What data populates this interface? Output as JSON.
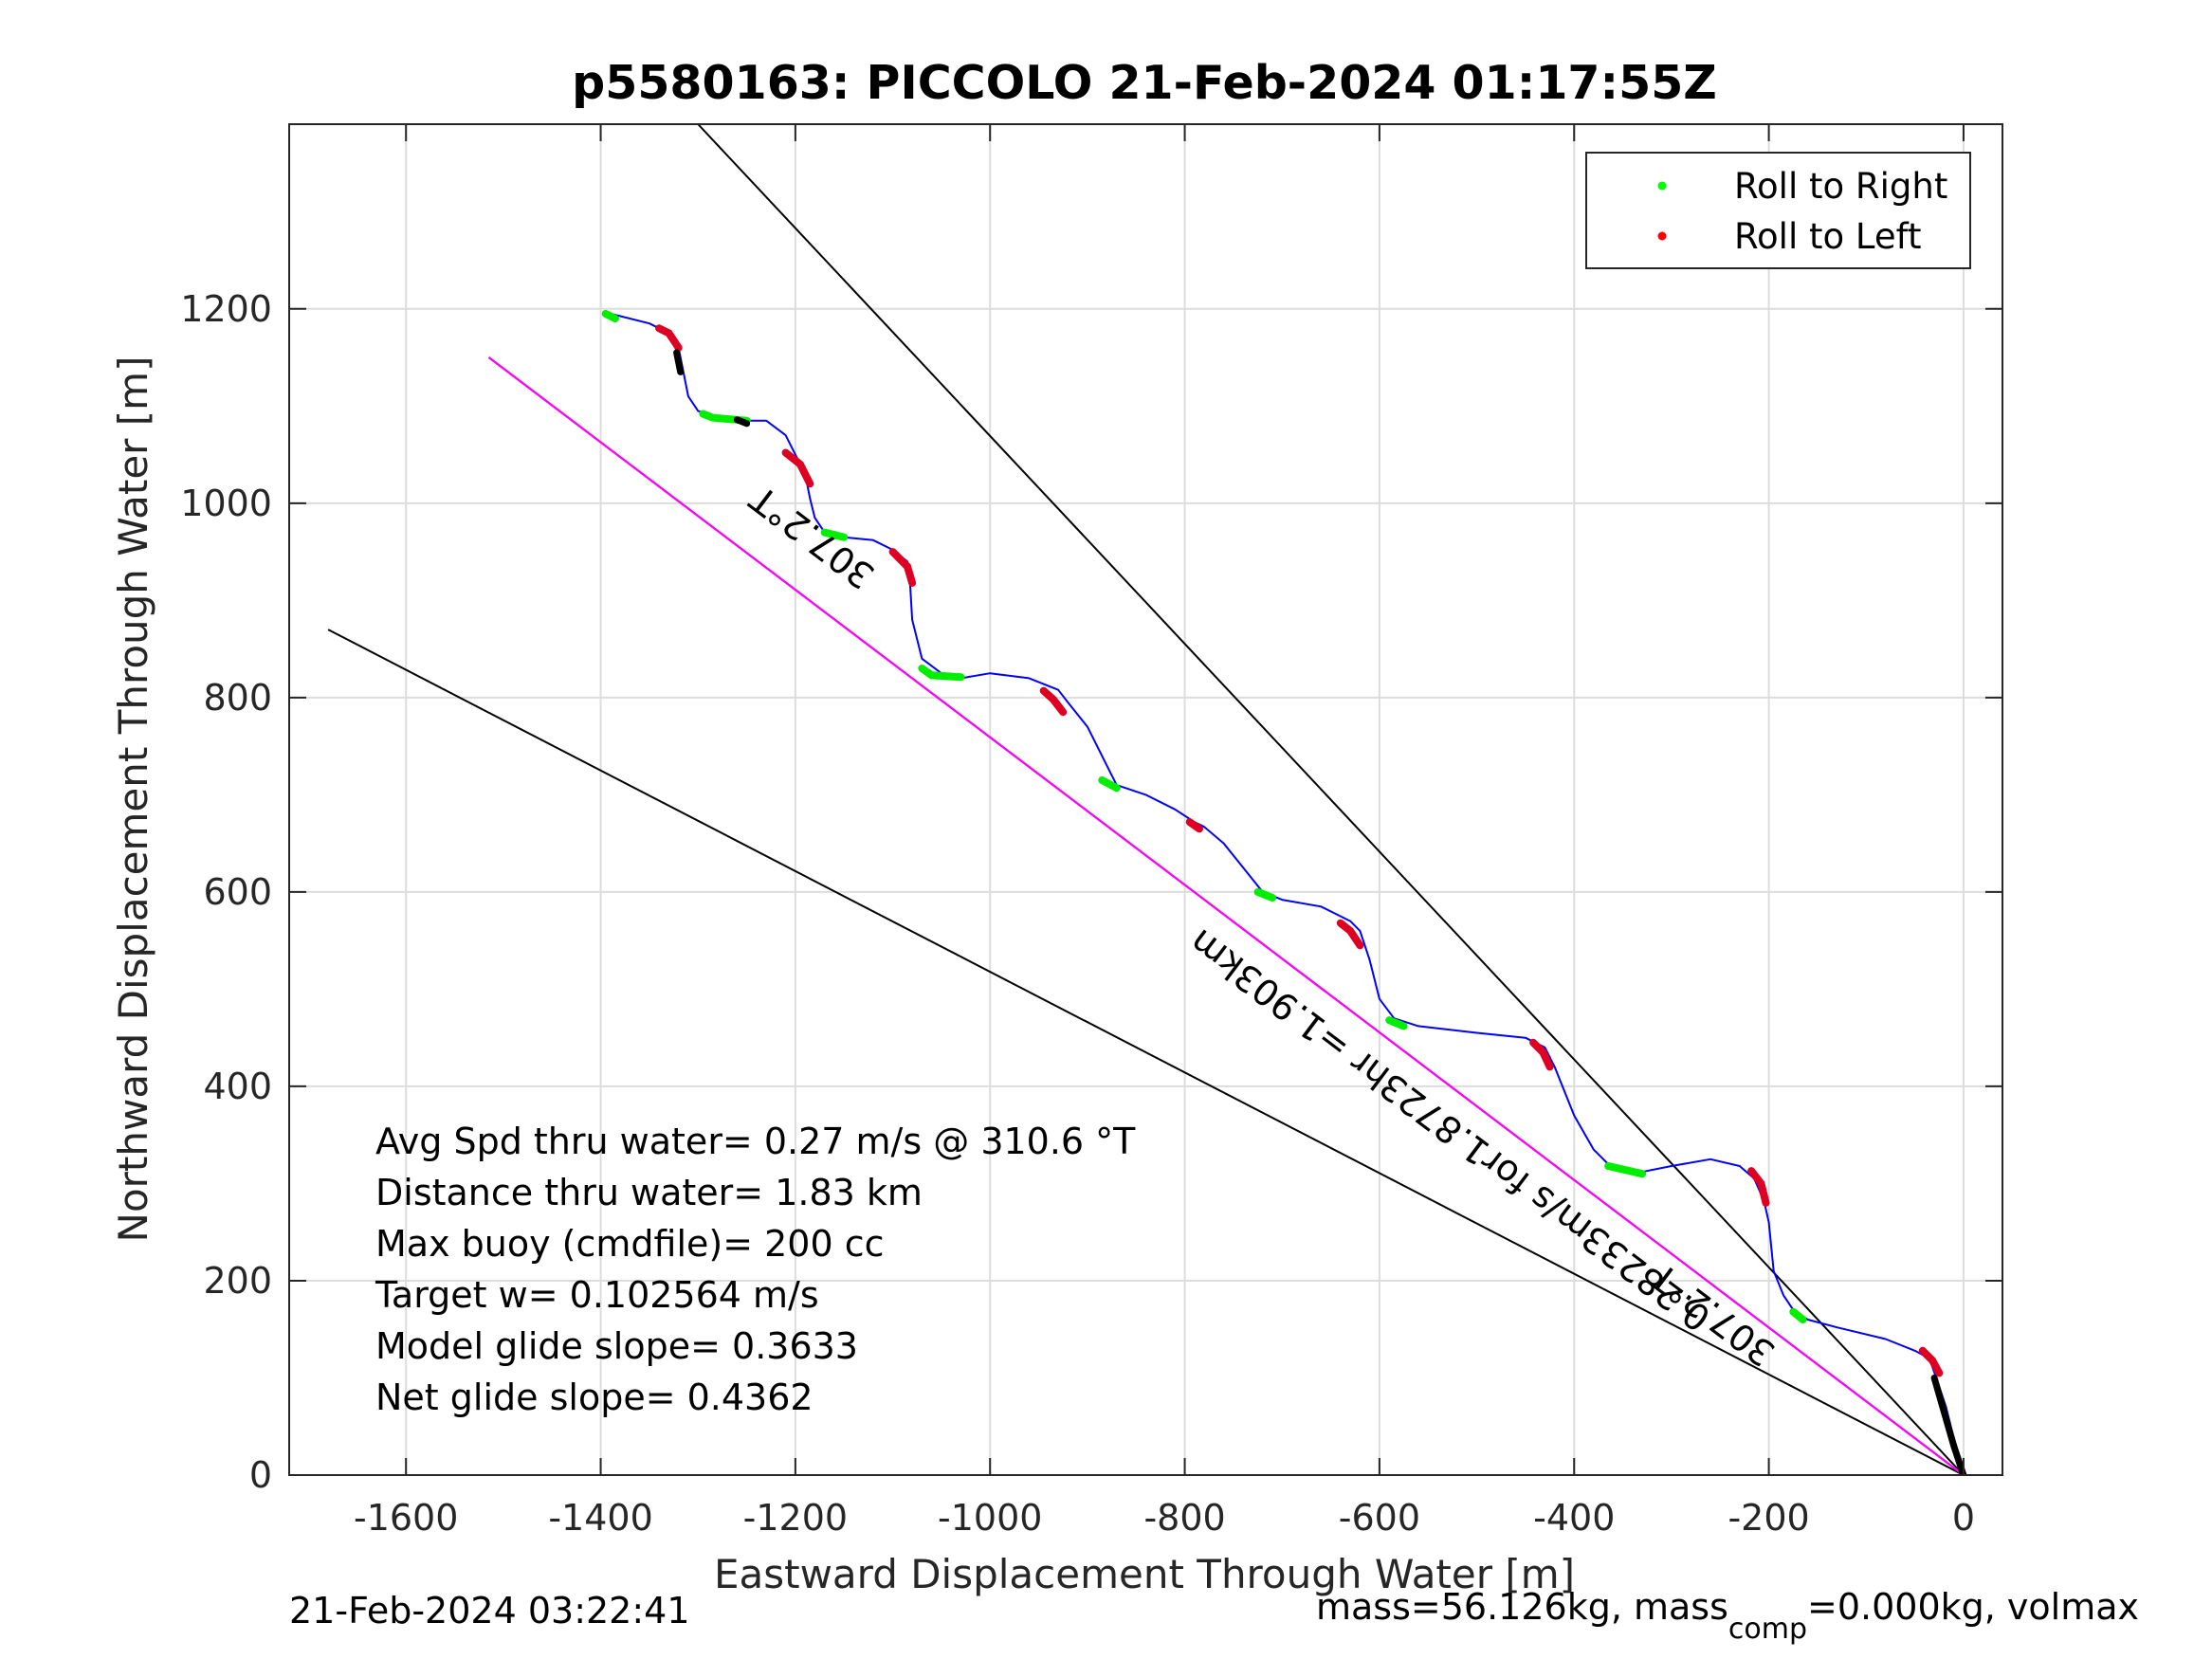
{
  "chart_data": {
    "type": "line",
    "title": "p5580163: PICCOLO 21-Feb-2024 01:17:55Z",
    "xlabel": "Eastward Displacement Through Water [m]",
    "ylabel": "Northward Displacement Through Water [m]",
    "xlim": [
      -1720,
      40
    ],
    "ylim": [
      0,
      1390
    ],
    "xticks": [
      -1600,
      -1400,
      -1200,
      -1000,
      -800,
      -600,
      -400,
      -200,
      0
    ],
    "yticks": [
      0,
      200,
      400,
      600,
      800,
      1000,
      1200
    ],
    "grid": true,
    "legend_position": "top-right",
    "legend": [
      {
        "label": "Roll to Right",
        "color": "#00ff00"
      },
      {
        "label": "Roll to Left",
        "color": "#ff0000"
      }
    ],
    "series": [
      {
        "color": "#0000ff",
        "x": [
          0,
          -8,
          -18,
          -28,
          -35,
          -50,
          -80,
          -130,
          -160,
          -175,
          -185,
          -195,
          -200,
          -205,
          -215,
          -230,
          -260,
          -300,
          -340,
          -360,
          -380,
          -400,
          -420,
          -430,
          -450,
          -500,
          -560,
          -585,
          -600,
          -610,
          -620,
          -630,
          -660,
          -700,
          -720,
          -740,
          -760,
          -780,
          -790,
          -810,
          -840,
          -870,
          -880,
          -900,
          -920,
          -930,
          -960,
          -1000,
          -1030,
          -1050,
          -1070,
          -1080,
          -1082,
          -1085,
          -1100,
          -1120,
          -1150,
          -1170,
          -1180,
          -1185,
          -1190,
          -1200,
          -1210,
          -1230,
          -1250,
          -1280,
          -1300,
          -1310,
          -1315,
          -1320,
          -1330,
          -1350,
          -1390
        ],
        "y": [
          0,
          30,
          70,
          100,
          120,
          128,
          140,
          152,
          160,
          170,
          185,
          210,
          260,
          282,
          305,
          318,
          325,
          318,
          310,
          315,
          335,
          370,
          420,
          440,
          450,
          455,
          462,
          470,
          490,
          530,
          560,
          570,
          585,
          592,
          600,
          625,
          650,
          667,
          672,
          685,
          700,
          710,
          730,
          770,
          795,
          808,
          820,
          825,
          820,
          825,
          840,
          880,
          915,
          940,
          952,
          962,
          965,
          970,
          985,
          1005,
          1030,
          1050,
          1070,
          1085,
          1085,
          1088,
          1095,
          1110,
          1135,
          1160,
          1175,
          1185,
          1195
        ]
      }
    ],
    "roll_right_segments": [
      {
        "x": [
          -1385,
          -1395
        ],
        "y": [
          1190,
          1195
        ]
      },
      {
        "x": [
          -1250,
          -1285,
          -1295
        ],
        "y": [
          1085,
          1088,
          1092
        ]
      },
      {
        "x": [
          -1150,
          -1170
        ],
        "y": [
          965,
          970
        ]
      },
      {
        "x": [
          -1030,
          -1060,
          -1070
        ],
        "y": [
          821,
          823,
          830
        ]
      },
      {
        "x": [
          -870,
          -885
        ],
        "y": [
          707,
          715
        ]
      },
      {
        "x": [
          -710,
          -725
        ],
        "y": [
          594,
          600
        ]
      },
      {
        "x": [
          -575,
          -590
        ],
        "y": [
          462,
          468
        ]
      },
      {
        "x": [
          -330,
          -365
        ],
        "y": [
          310,
          318
        ]
      },
      {
        "x": [
          -165,
          -175
        ],
        "y": [
          160,
          168
        ]
      }
    ],
    "roll_left_segments": [
      {
        "x": [
          -1320,
          -1330,
          -1340
        ],
        "y": [
          1160,
          1175,
          1180
        ]
      },
      {
        "x": [
          -1185,
          -1195,
          -1210
        ],
        "y": [
          1020,
          1040,
          1052
        ]
      },
      {
        "x": [
          -1080,
          -1085,
          -1100
        ],
        "y": [
          918,
          935,
          950
        ]
      },
      {
        "x": [
          -925,
          -935,
          -945
        ],
        "y": [
          785,
          798,
          807
        ]
      },
      {
        "x": [
          -785,
          -795
        ],
        "y": [
          665,
          672
        ]
      },
      {
        "x": [
          -620,
          -630,
          -640
        ],
        "y": [
          545,
          560,
          568
        ]
      },
      {
        "x": [
          -425,
          -432,
          -442
        ],
        "y": [
          420,
          435,
          445
        ]
      },
      {
        "x": [
          -203,
          -208,
          -218
        ],
        "y": [
          280,
          300,
          313
        ]
      },
      {
        "x": [
          -25,
          -32,
          -42
        ],
        "y": [
          105,
          118,
          128
        ]
      }
    ],
    "black_segments": [
      {
        "x": [
          -1318,
          -1322
        ],
        "y": [
          1135,
          1155
        ]
      },
      {
        "x": [
          -1250,
          -1260
        ],
        "y": [
          1082,
          1086
        ]
      },
      {
        "x": [
          0,
          -10,
          -20,
          -30
        ],
        "y": [
          0,
          30,
          65,
          100
        ]
      }
    ],
    "reference_lines": [
      {
        "color": "#000000",
        "x": [
          0,
          -1300
        ],
        "y": [
          0,
          1390
        ]
      },
      {
        "color": "#000000",
        "x": [
          0,
          -1515
        ],
        "y": [
          0,
          1150
        ]
      },
      {
        "color": "#000000",
        "x": [
          0,
          -1680
        ],
        "y": [
          0,
          870
        ]
      },
      {
        "color": "#ff00ff",
        "x": [
          0,
          -1515
        ],
        "y": [
          0,
          1150
        ]
      }
    ],
    "annotations": [
      {
        "text": "307.2°T",
        "x": -1175,
        "y": 975,
        "angle_deg": 37
      },
      {
        "text": "307.2°T",
        "x": -250,
        "y": 175,
        "angle_deg": 37
      },
      {
        "text": "0.28233m/s for1.8723hr =1.903km",
        "x": -520,
        "y": 365,
        "angle_deg": 37
      }
    ]
  },
  "stats_text": [
    "Avg Spd thru water=  0.27 m/s @ 310.6 °T",
    "Distance thru water=  1.83 km",
    "Max buoy (cmdfile)= 200 cc",
    "Target w= 0.102564 m/s",
    "Model glide slope= 0.3633",
    "Net glide slope= 0.4362"
  ],
  "footer": {
    "timestamp": "21-Feb-2024 03:22:41",
    "mass_prefix": "mass=56.126kg, mass",
    "mass_sub": "comp",
    "mass_suffix": "=0.000kg, volmax"
  }
}
